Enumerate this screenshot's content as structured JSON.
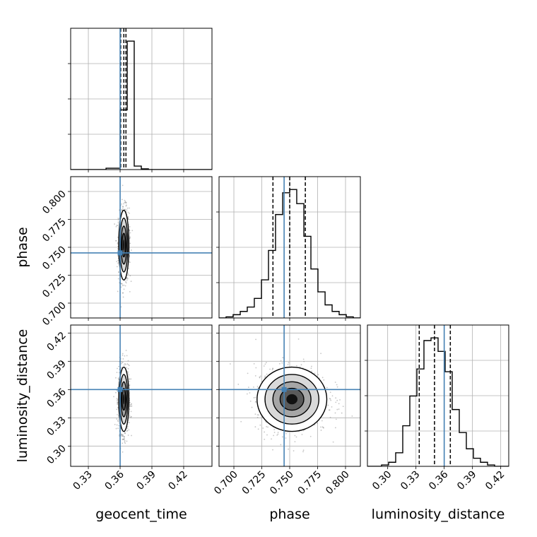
{
  "chart_data": {
    "type": "corner",
    "parameters": [
      "geocent_time",
      "phase",
      "luminosity_distance"
    ],
    "axis_labels": {
      "geocent_time": "geocent_time",
      "phase": "phase",
      "luminosity_distance": "luminosity_distance"
    },
    "ranges": {
      "geocent_time": [
        0.3133,
        0.4467
      ],
      "phase": [
        0.6867,
        0.8133
      ],
      "luminosity_distance": [
        0.2785,
        0.4285
      ]
    },
    "ticks": {
      "geocent_time": [
        {
          "v": 0.33,
          "label": "0.33"
        },
        {
          "v": 0.36,
          "label": "0.36"
        },
        {
          "v": 0.39,
          "label": "0.39"
        },
        {
          "v": 0.42,
          "label": "0.42"
        }
      ],
      "phase": [
        {
          "v": 0.7,
          "label": "0.700"
        },
        {
          "v": 0.725,
          "label": "0.725"
        },
        {
          "v": 0.75,
          "label": "0.750"
        },
        {
          "v": 0.775,
          "label": "0.775"
        },
        {
          "v": 0.8,
          "label": "0.800"
        }
      ],
      "luminosity_distance": [
        {
          "v": 0.3,
          "label": "0.30"
        },
        {
          "v": 0.33,
          "label": "0.33"
        },
        {
          "v": 0.36,
          "label": "0.36"
        },
        {
          "v": 0.39,
          "label": "0.39"
        },
        {
          "v": 0.42,
          "label": "0.42"
        }
      ]
    },
    "truths": {
      "geocent_time": 0.36,
      "phase": 0.745,
      "luminosity_distance": 0.36
    },
    "quantiles": {
      "geocent_time": [
        0.3605,
        0.3635,
        0.3655
      ],
      "phase": [
        0.735,
        0.75,
        0.764
      ],
      "luminosity_distance": [
        0.3335,
        0.3497,
        0.3665
      ]
    },
    "histograms": {
      "geocent_time": {
        "edges": [
          0.3133,
          0.32,
          0.3267,
          0.3333,
          0.34,
          0.3467,
          0.3533,
          0.36,
          0.3667,
          0.3733,
          0.38,
          0.3867,
          0.3933,
          0.4,
          0.4067,
          0.4133,
          0.42,
          0.4267,
          0.4333,
          0.44,
          0.4467
        ],
        "counts": [
          0,
          0,
          0,
          0,
          0,
          2,
          2,
          85,
          183,
          5,
          1,
          0,
          0,
          0,
          0,
          0,
          0,
          0,
          0,
          0
        ]
      },
      "phase": {
        "edges": [
          0.6867,
          0.693,
          0.6993,
          0.7057,
          0.712,
          0.7183,
          0.7247,
          0.731,
          0.7373,
          0.7437,
          0.75,
          0.7563,
          0.7627,
          0.769,
          0.7753,
          0.7817,
          0.788,
          0.7943,
          0.8007,
          0.807,
          0.8133
        ],
        "counts": [
          0,
          1,
          3,
          6,
          10,
          18,
          35,
          62,
          95,
          115,
          118,
          105,
          75,
          45,
          24,
          12,
          6,
          3,
          1,
          0
        ]
      },
      "luminosity_distance": {
        "edges": [
          0.2785,
          0.286,
          0.2935,
          0.301,
          0.3085,
          0.316,
          0.3235,
          0.331,
          0.3385,
          0.346,
          0.3535,
          0.361,
          0.3685,
          0.376,
          0.3835,
          0.391,
          0.3985,
          0.406,
          0.4135,
          0.421,
          0.4285
        ],
        "counts": [
          0,
          0,
          1,
          3,
          10,
          30,
          52,
          72,
          93,
          95,
          85,
          70,
          42,
          25,
          13,
          6,
          3,
          1,
          0,
          0
        ]
      }
    },
    "posterior_center": {
      "geocent_time": 0.3635,
      "phase": 0.752,
      "luminosity_distance": 0.3497
    },
    "posterior_spread": {
      "geocent_time": 0.0022,
      "phase": 0.0142,
      "luminosity_distance": 0.0155
    },
    "grid": true,
    "colors": {
      "truth": "#4682b4",
      "hist": "#000000",
      "grid": "#b0b0b0",
      "points": "#808080"
    }
  }
}
